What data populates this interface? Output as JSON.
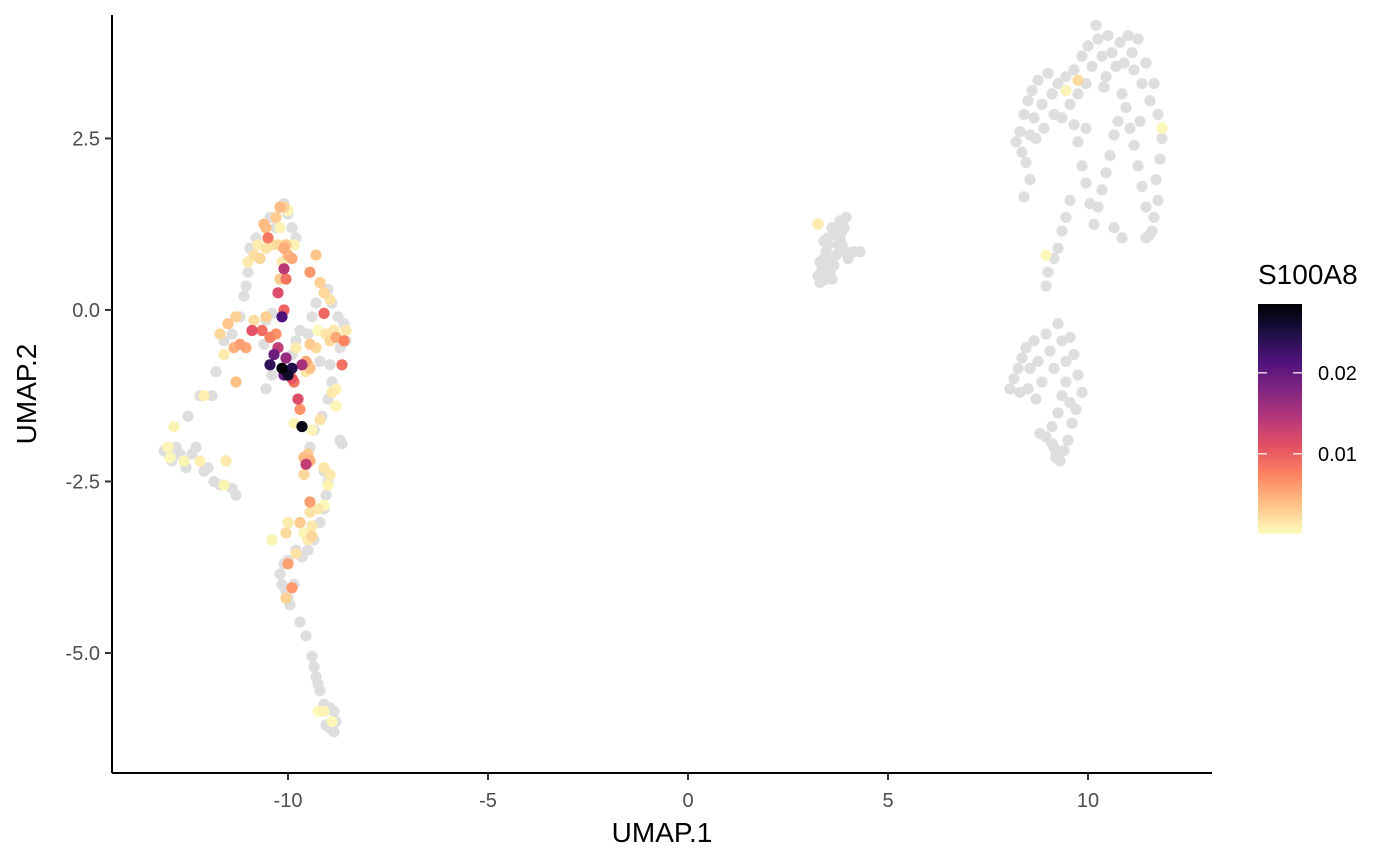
{
  "chart_data": {
    "type": "scatter",
    "xlabel": "UMAP.1",
    "ylabel": "UMAP.2",
    "xlim": [
      -14.4,
      13.1
    ],
    "ylim": [
      -6.75,
      4.3
    ],
    "xticks": [
      -10,
      -5,
      0,
      5,
      10
    ],
    "xtick_labels": [
      "-10",
      "-5",
      "0",
      "5",
      "10"
    ],
    "yticks": [
      -5.0,
      -2.5,
      0.0,
      2.5
    ],
    "ytick_labels": [
      "-5.0",
      "-2.5",
      "0.0",
      "2.5"
    ],
    "grid": false,
    "legend": {
      "title": "S100A8",
      "position": "right",
      "type": "colorbar",
      "range": [
        0.0001,
        0.0285
      ],
      "ticks": [
        0.01,
        0.02
      ],
      "tick_labels": [
        "0.01",
        "0.02"
      ],
      "palette": [
        "#FCFDBF",
        "#FEC488",
        "#FC8761",
        "#E75263",
        "#B73779",
        "#832681",
        "#4F127B",
        "#1C1044",
        "#000004"
      ]
    },
    "na_color": "#DEDEDE",
    "gray_points": [
      [
        -13.1,
        -2.05
      ],
      [
        -13.0,
        -2.1
      ],
      [
        -12.95,
        -2.15
      ],
      [
        -12.9,
        -2.2
      ],
      [
        -12.8,
        -2.0
      ],
      [
        -12.7,
        -2.1
      ],
      [
        -12.55,
        -2.3
      ],
      [
        -12.4,
        -2.1
      ],
      [
        -12.3,
        -2.0
      ],
      [
        -12.1,
        -2.35
      ],
      [
        -12.0,
        -2.3
      ],
      [
        -11.85,
        -2.5
      ],
      [
        -11.7,
        -2.55
      ],
      [
        -11.55,
        -2.2
      ],
      [
        -11.4,
        -2.6
      ],
      [
        -11.3,
        -2.7
      ],
      [
        -12.2,
        -1.25
      ],
      [
        -11.8,
        -0.9
      ],
      [
        -11.6,
        -0.45
      ],
      [
        -11.4,
        -0.35
      ],
      [
        -11.2,
        -0.1
      ],
      [
        -11.1,
        0.2
      ],
      [
        -11.05,
        0.35
      ],
      [
        -11.0,
        0.55
      ],
      [
        -10.95,
        0.9
      ],
      [
        -10.8,
        1.05
      ],
      [
        -10.6,
        1.25
      ],
      [
        -10.45,
        1.35
      ],
      [
        -10.3,
        1.2
      ],
      [
        -10.2,
        1.5
      ],
      [
        -10.1,
        1.55
      ],
      [
        -10.0,
        1.4
      ],
      [
        -9.9,
        1.2
      ],
      [
        -9.8,
        1.05
      ],
      [
        -10.6,
        -0.5
      ],
      [
        -10.55,
        -0.15
      ],
      [
        -10.4,
        -0.05
      ],
      [
        -10.25,
        -0.55
      ],
      [
        -9.9,
        -0.65
      ],
      [
        -9.8,
        -0.45
      ],
      [
        -9.7,
        -0.3
      ],
      [
        -9.5,
        -0.35
      ],
      [
        -9.4,
        -0.1
      ],
      [
        -9.3,
        0.1
      ],
      [
        -9.0,
        0.3
      ],
      [
        -8.9,
        0.1
      ],
      [
        -8.75,
        -0.1
      ],
      [
        -8.6,
        -0.2
      ],
      [
        -8.55,
        -0.45
      ],
      [
        -8.7,
        -0.55
      ],
      [
        -9.2,
        -0.75
      ],
      [
        -8.95,
        -0.8
      ],
      [
        -8.9,
        -1.05
      ],
      [
        -9.0,
        -1.3
      ],
      [
        -9.15,
        -1.55
      ],
      [
        -9.35,
        -1.75
      ],
      [
        -9.45,
        -2.0
      ],
      [
        -8.7,
        -1.9
      ],
      [
        -8.65,
        -1.95
      ],
      [
        -9.1,
        -2.35
      ],
      [
        -9.0,
        -2.5
      ],
      [
        -9.05,
        -2.7
      ],
      [
        -9.1,
        -2.9
      ],
      [
        -9.2,
        -3.1
      ],
      [
        -9.35,
        -3.35
      ],
      [
        -9.5,
        -3.5
      ],
      [
        -9.65,
        -3.6
      ],
      [
        -9.8,
        -3.5
      ],
      [
        -10.0,
        -3.65
      ],
      [
        -10.1,
        -3.7
      ],
      [
        -10.2,
        -3.85
      ],
      [
        -10.15,
        -4.0
      ],
      [
        -10.05,
        -4.1
      ],
      [
        -10.0,
        -4.2
      ],
      [
        -9.95,
        -4.3
      ],
      [
        -9.85,
        -4.0
      ],
      [
        -9.7,
        -4.55
      ],
      [
        -9.55,
        -4.75
      ],
      [
        -9.4,
        -5.05
      ],
      [
        -9.35,
        -5.2
      ],
      [
        -9.3,
        -5.35
      ],
      [
        -9.25,
        -5.45
      ],
      [
        -9.2,
        -5.55
      ],
      [
        -9.1,
        -5.75
      ],
      [
        -8.95,
        -5.8
      ],
      [
        -9.05,
        -6.05
      ],
      [
        -8.95,
        -6.1
      ],
      [
        -8.85,
        -6.15
      ],
      [
        -8.8,
        -6.0
      ],
      [
        -8.85,
        -5.85
      ],
      [
        -10.4,
        -0.95
      ],
      [
        -10.55,
        -1.15
      ],
      [
        -11.9,
        -1.25
      ],
      [
        -12.5,
        -1.55
      ],
      [
        3.3,
        0.4
      ],
      [
        3.25,
        0.5
      ],
      [
        3.35,
        0.6
      ],
      [
        3.4,
        0.75
      ],
      [
        3.45,
        0.85
      ],
      [
        3.5,
        0.95
      ],
      [
        3.55,
        0.55
      ],
      [
        3.6,
        0.45
      ],
      [
        3.65,
        0.65
      ],
      [
        3.7,
        0.8
      ],
      [
        3.75,
        0.95
      ],
      [
        3.8,
        1.05
      ],
      [
        3.85,
        1.15
      ],
      [
        3.9,
        1.2
      ],
      [
        3.95,
        1.35
      ],
      [
        3.8,
        1.3
      ],
      [
        3.7,
        1.1
      ],
      [
        3.6,
        1.2
      ],
      [
        3.5,
        1.05
      ],
      [
        3.4,
        1.0
      ],
      [
        3.95,
        0.85
      ],
      [
        4.0,
        0.75
      ],
      [
        4.15,
        0.85
      ],
      [
        4.3,
        0.85
      ],
      [
        3.3,
        0.7
      ],
      [
        3.45,
        0.45
      ],
      [
        3.55,
        0.7
      ],
      [
        3.85,
        0.95
      ],
      [
        8.2,
        2.45
      ],
      [
        8.3,
        2.6
      ],
      [
        8.35,
        2.3
      ],
      [
        8.4,
        2.85
      ],
      [
        8.45,
        2.15
      ],
      [
        8.5,
        3.05
      ],
      [
        8.55,
        2.55
      ],
      [
        8.6,
        3.2
      ],
      [
        8.65,
        2.8
      ],
      [
        8.7,
        2.5
      ],
      [
        8.75,
        3.35
      ],
      [
        8.85,
        3.0
      ],
      [
        8.9,
        2.65
      ],
      [
        9.0,
        3.45
      ],
      [
        9.1,
        3.15
      ],
      [
        9.15,
        2.85
      ],
      [
        9.25,
        3.3
      ],
      [
        9.35,
        2.8
      ],
      [
        9.45,
        3.4
      ],
      [
        9.55,
        3.0
      ],
      [
        9.65,
        3.5
      ],
      [
        9.75,
        3.15
      ],
      [
        9.85,
        3.7
      ],
      [
        9.95,
        3.3
      ],
      [
        10.0,
        3.85
      ],
      [
        10.1,
        3.55
      ],
      [
        10.2,
        4.15
      ],
      [
        10.25,
        3.95
      ],
      [
        10.35,
        3.7
      ],
      [
        10.45,
        3.4
      ],
      [
        10.5,
        4.0
      ],
      [
        10.6,
        3.75
      ],
      [
        10.7,
        3.55
      ],
      [
        10.8,
        3.9
      ],
      [
        10.9,
        3.6
      ],
      [
        11.0,
        4.0
      ],
      [
        11.1,
        3.75
      ],
      [
        11.15,
        3.5
      ],
      [
        11.25,
        3.95
      ],
      [
        11.35,
        3.3
      ],
      [
        11.45,
        3.6
      ],
      [
        11.55,
        3.05
      ],
      [
        11.65,
        3.3
      ],
      [
        11.75,
        2.85
      ],
      [
        11.85,
        2.5
      ],
      [
        11.8,
        2.2
      ],
      [
        11.7,
        1.9
      ],
      [
        11.75,
        1.6
      ],
      [
        11.65,
        1.35
      ],
      [
        11.55,
        1.1
      ],
      [
        11.45,
        1.5
      ],
      [
        11.35,
        1.8
      ],
      [
        11.25,
        2.1
      ],
      [
        11.15,
        2.4
      ],
      [
        11.05,
        2.65
      ],
      [
        10.95,
        2.95
      ],
      [
        10.85,
        3.15
      ],
      [
        10.75,
        2.75
      ],
      [
        10.65,
        2.55
      ],
      [
        10.55,
        2.25
      ],
      [
        10.45,
        2.0
      ],
      [
        10.35,
        1.75
      ],
      [
        10.25,
        1.5
      ],
      [
        10.15,
        1.25
      ],
      [
        10.05,
        1.55
      ],
      [
        9.95,
        1.85
      ],
      [
        9.85,
        2.1
      ],
      [
        9.75,
        2.45
      ],
      [
        9.65,
        2.7
      ],
      [
        9.55,
        1.6
      ],
      [
        9.45,
        1.35
      ],
      [
        9.35,
        1.15
      ],
      [
        9.25,
        0.9
      ],
      [
        9.15,
        0.75
      ],
      [
        9.0,
        0.55
      ],
      [
        8.95,
        0.35
      ],
      [
        11.45,
        1.05
      ],
      [
        11.6,
        1.15
      ],
      [
        10.85,
        1.05
      ],
      [
        10.65,
        1.2
      ],
      [
        9.95,
        2.65
      ],
      [
        10.4,
        3.25
      ],
      [
        11.3,
        2.75
      ],
      [
        8.4,
        1.65
      ],
      [
        8.55,
        1.9
      ],
      [
        8.05,
        -1.15
      ],
      [
        8.15,
        -1.0
      ],
      [
        8.25,
        -0.85
      ],
      [
        8.35,
        -0.7
      ],
      [
        8.45,
        -0.55
      ],
      [
        8.55,
        -0.85
      ],
      [
        8.65,
        -0.45
      ],
      [
        8.75,
        -0.75
      ],
      [
        8.85,
        -1.05
      ],
      [
        8.95,
        -0.35
      ],
      [
        9.05,
        -0.6
      ],
      [
        9.15,
        -0.85
      ],
      [
        9.25,
        -0.2
      ],
      [
        9.35,
        -0.45
      ],
      [
        9.45,
        -0.75
      ],
      [
        9.55,
        -0.4
      ],
      [
        9.65,
        -0.65
      ],
      [
        9.75,
        -0.95
      ],
      [
        9.85,
        -1.2
      ],
      [
        9.7,
        -1.45
      ],
      [
        9.6,
        -1.65
      ],
      [
        9.5,
        -1.9
      ],
      [
        9.4,
        -2.05
      ],
      [
        9.3,
        -2.2
      ],
      [
        9.2,
        -2.1
      ],
      [
        9.1,
        -1.95
      ],
      [
        8.95,
        -1.85
      ],
      [
        8.8,
        -1.8
      ],
      [
        9.35,
        -1.25
      ],
      [
        9.25,
        -1.5
      ],
      [
        9.1,
        -1.7
      ],
      [
        9.45,
        -1.05
      ],
      [
        9.55,
        -1.35
      ],
      [
        8.7,
        -1.3
      ],
      [
        8.5,
        -1.15
      ],
      [
        8.3,
        -1.2
      ],
      [
        9.2,
        -2.15
      ],
      [
        9.15,
        -2.0
      ]
    ],
    "colored_points": [
      [
        -13.0,
        -2.0,
        0.0006
      ],
      [
        -12.85,
        -1.7,
        0.0008
      ],
      [
        -12.95,
        -2.15,
        0.0005
      ],
      [
        -12.6,
        -2.2,
        0.0007
      ],
      [
        -12.2,
        -2.2,
        0.0009
      ],
      [
        -11.6,
        -2.55,
        0.0007
      ],
      [
        -11.55,
        -2.2,
        0.0012
      ],
      [
        -12.1,
        -1.25,
        0.001
      ],
      [
        -11.3,
        -1.05,
        0.0038
      ],
      [
        -11.6,
        -0.65,
        0.0012
      ],
      [
        -11.7,
        -0.35,
        0.0024
      ],
      [
        -11.5,
        -0.2,
        0.0036
      ],
      [
        -11.3,
        -0.1,
        0.0028
      ],
      [
        -11.2,
        -0.5,
        0.0058
      ],
      [
        -11.05,
        -0.55,
        0.0052
      ],
      [
        -11.35,
        -0.55,
        0.0048
      ],
      [
        -10.9,
        -0.3,
        0.011
      ],
      [
        -10.65,
        -0.3,
        0.009
      ],
      [
        -10.85,
        -0.15,
        0.002
      ],
      [
        -10.55,
        -0.1,
        0.003
      ],
      [
        -11.0,
        0.7,
        0.0013
      ],
      [
        -10.85,
        0.8,
        0.002
      ],
      [
        -10.7,
        0.75,
        0.0025
      ],
      [
        -10.55,
        0.9,
        0.0018
      ],
      [
        -10.75,
        0.95,
        0.001
      ],
      [
        -10.4,
        0.95,
        0.0016
      ],
      [
        -10.6,
        1.25,
        0.0042
      ],
      [
        -10.55,
        1.2,
        0.004
      ],
      [
        -10.5,
        1.05,
        0.0082
      ],
      [
        -10.3,
        1.35,
        0.0032
      ],
      [
        -10.2,
        1.5,
        0.0042
      ],
      [
        -10.1,
        1.5,
        0.0026
      ],
      [
        -10.0,
        1.45,
        0.0006
      ],
      [
        -10.2,
        1.2,
        0.0008
      ],
      [
        -10.1,
        0.9,
        0.005
      ],
      [
        -10.0,
        0.8,
        0.0045
      ],
      [
        -9.9,
        0.75,
        0.0052
      ],
      [
        -10.25,
        0.95,
        0.0022
      ],
      [
        -10.15,
        0.7,
        0.0012
      ],
      [
        -10.05,
        0.95,
        0.0035
      ],
      [
        -10.1,
        0.6,
        0.014
      ],
      [
        -10.2,
        0.45,
        0.0032
      ],
      [
        -10.05,
        0.45,
        0.0085
      ],
      [
        -10.25,
        0.25,
        0.0115
      ],
      [
        -10.1,
        0.0,
        0.0095
      ],
      [
        -10.15,
        -0.1,
        0.0215
      ],
      [
        -10.3,
        -0.35,
        0.0065
      ],
      [
        -10.45,
        -0.4,
        0.0075
      ],
      [
        -10.25,
        -0.55,
        0.0135
      ],
      [
        -10.35,
        -0.65,
        0.0195
      ],
      [
        -10.45,
        -0.8,
        0.0235
      ],
      [
        -10.15,
        -0.85,
        0.0285
      ],
      [
        -10.05,
        -0.7,
        0.0165
      ],
      [
        -9.9,
        -0.85,
        0.0245
      ],
      [
        -10.0,
        -0.95,
        0.0265
      ],
      [
        -10.1,
        -0.95,
        0.0195
      ],
      [
        -9.9,
        -1.0,
        0.0105
      ],
      [
        -9.85,
        -1.05,
        0.0085
      ],
      [
        -9.8,
        -0.55,
        0.0012
      ],
      [
        -9.65,
        -0.8,
        0.0155
      ],
      [
        -9.55,
        -0.75,
        0.0052
      ],
      [
        -9.5,
        -0.8,
        0.0032
      ],
      [
        -9.45,
        -0.5,
        0.0032
      ],
      [
        -9.3,
        -0.55,
        0.0024
      ],
      [
        -9.55,
        -0.9,
        0.0015
      ],
      [
        -9.75,
        -1.3,
        0.0115
      ],
      [
        -9.7,
        -1.45,
        0.0065
      ],
      [
        -9.65,
        -1.7,
        0.0275
      ],
      [
        -9.85,
        -1.65,
        0.0008
      ],
      [
        -9.4,
        -1.75,
        0.0006
      ],
      [
        -9.45,
        -0.85,
        0.0038
      ],
      [
        -9.25,
        -0.3,
        0.0004
      ],
      [
        -9.05,
        -0.35,
        0.0016
      ],
      [
        -8.95,
        -0.45,
        0.0024
      ],
      [
        -8.85,
        -0.3,
        0.0014
      ],
      [
        -8.8,
        -0.4,
        0.0052
      ],
      [
        -8.6,
        -0.45,
        0.0075
      ],
      [
        -8.55,
        -0.3,
        0.0014
      ],
      [
        -8.65,
        -0.8,
        0.0085
      ],
      [
        -9.1,
        0.25,
        0.0025
      ],
      [
        -8.95,
        0.15,
        0.0018
      ],
      [
        -9.1,
        -0.05,
        0.0095
      ],
      [
        -9.2,
        0.4,
        0.0028
      ],
      [
        -9.3,
        0.8,
        0.0036
      ],
      [
        -9.45,
        0.55,
        0.0062
      ],
      [
        -9.85,
        0.95,
        0.0008
      ],
      [
        -9.2,
        -1.6,
        0.0018
      ],
      [
        -8.8,
        -1.15,
        0.0008
      ],
      [
        -8.9,
        -1.2,
        0.0014
      ],
      [
        -8.8,
        -1.4,
        0.0005
      ],
      [
        -9.6,
        -2.15,
        0.0042
      ],
      [
        -9.5,
        -2.1,
        0.0032
      ],
      [
        -9.55,
        -2.25,
        0.0135
      ],
      [
        -9.45,
        -2.2,
        0.0048
      ],
      [
        -9.6,
        -2.4,
        0.0024
      ],
      [
        -9.1,
        -2.3,
        0.0016
      ],
      [
        -8.95,
        -2.4,
        0.0012
      ],
      [
        -9.0,
        -2.55,
        0.0008
      ],
      [
        -9.1,
        -2.85,
        0.0005
      ],
      [
        -9.45,
        -2.8,
        0.0058
      ],
      [
        -9.45,
        -2.95,
        0.0018
      ],
      [
        -9.25,
        -2.9,
        0.0014
      ],
      [
        -9.4,
        -3.15,
        0.0014
      ],
      [
        -9.4,
        -3.3,
        0.0026
      ],
      [
        -9.5,
        -3.35,
        0.0012
      ],
      [
        -9.6,
        -3.25,
        0.0006
      ],
      [
        -9.7,
        -3.1,
        0.0032
      ],
      [
        -10.0,
        -3.1,
        0.0012
      ],
      [
        -10.05,
        -3.25,
        0.0022
      ],
      [
        -10.4,
        -3.35,
        0.0007
      ],
      [
        -9.8,
        -3.55,
        0.0018
      ],
      [
        -10.0,
        -3.7,
        0.0058
      ],
      [
        -9.9,
        -4.05,
        0.0062
      ],
      [
        -10.05,
        -4.2,
        0.0028
      ],
      [
        -9.1,
        -5.85,
        0.0008
      ],
      [
        -8.9,
        -6.0,
        0.0005
      ],
      [
        -9.25,
        -5.85,
        0.0003
      ],
      [
        3.25,
        1.25,
        0.0012
      ],
      [
        9.45,
        3.2,
        0.0007
      ],
      [
        9.75,
        3.35,
        0.0022
      ],
      [
        11.85,
        2.65,
        0.0004
      ],
      [
        8.95,
        0.8,
        0.0005
      ]
    ]
  }
}
